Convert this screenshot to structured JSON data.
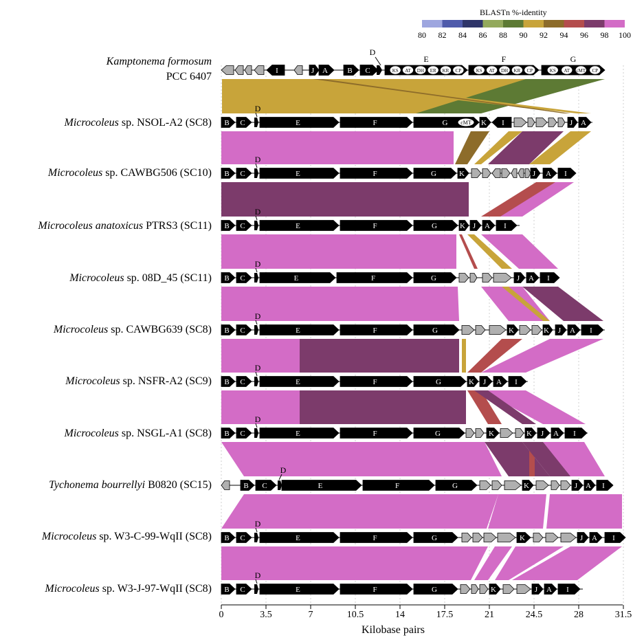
{
  "legend": {
    "title": "BLASTn %-identity",
    "ticks": [
      "80",
      "82",
      "84",
      "86",
      "88",
      "90",
      "92",
      "94",
      "96",
      "98",
      "100"
    ],
    "colors": [
      "#9ea6df",
      "#4f5bab",
      "#2f3569",
      "#93a95c",
      "#5d7a34",
      "#c8a43a",
      "#8d6c2a",
      "#b44d4d",
      "#7c3b6b",
      "#d36cc6"
    ]
  },
  "axis": {
    "label": "Kilobase pairs",
    "ticks": [
      "0",
      "3.5",
      "7",
      "10.5",
      "14",
      "17.5",
      "21",
      "24.5",
      "28",
      "31.5"
    ]
  },
  "tracks": [
    {
      "italic": "Kamptonema formosum",
      "rest": "",
      "line2": "PCC 6407"
    },
    {
      "italic": "Microcoleus",
      "rest": " sp. NSOL-A2 (SC8)"
    },
    {
      "italic": "Microcoleus",
      "rest": " sp. CAWBG506 (SC10)"
    },
    {
      "italic": "Microcoleus anatoxicus",
      "rest": " PTRS3 (SC11)"
    },
    {
      "italic": "Microcoleus",
      "rest": " sp. 08D_45 (SC11)"
    },
    {
      "italic": "Microcoleus",
      "rest": " sp. CAWBG639 (SC8)"
    },
    {
      "italic": "Microcoleus",
      "rest": " sp. NSFR-A2 (SC9)"
    },
    {
      "italic": "Microcoleus",
      "rest": " sp. NSGL-A1 (SC8)"
    },
    {
      "italic": "Tychonema bourrellyi",
      "rest": " B0820 (SC15)"
    },
    {
      "italic": "Microcoleus",
      "rest": " sp. W3-C-99-WqII (SC8)"
    },
    {
      "italic": "Microcoleus",
      "rest": " sp. W3-J-97-WqII (SC8)"
    }
  ],
  "gene_labels": {
    "B": "B",
    "C": "C",
    "D": "D",
    "E": "E",
    "F": "F",
    "G": "G",
    "I": "I",
    "J": "J",
    "A": "A",
    "K": "K",
    "domains_E": [
      "KS",
      "AT",
      "DH",
      "ER",
      "KR",
      "CP"
    ],
    "domains_F": [
      "KS",
      "AT",
      "DH",
      "KR",
      "CP"
    ],
    "domains_G": [
      "KS",
      "AT",
      "cMT",
      "CP"
    ],
    "cMT": "cMT"
  }
}
